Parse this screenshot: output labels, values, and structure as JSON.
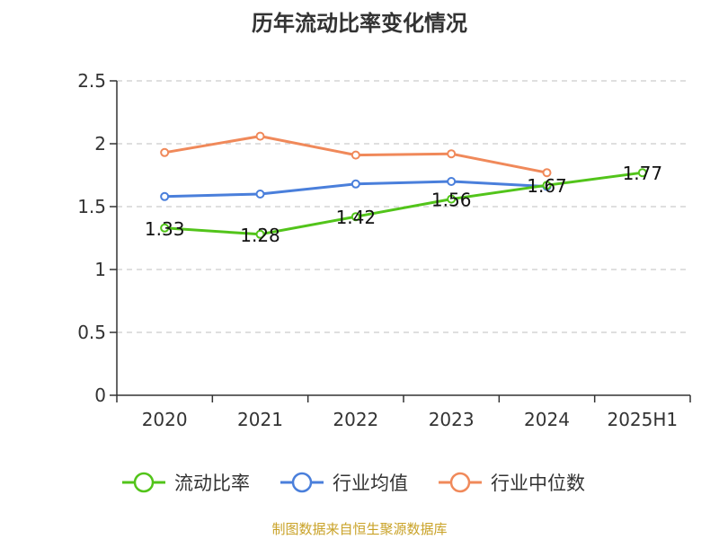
{
  "chart_data": {
    "type": "line",
    "title": "历年流动比率变化情况",
    "categories": [
      "2020",
      "2021",
      "2022",
      "2023",
      "2024",
      "2025H1"
    ],
    "ylim": [
      0,
      2.5
    ],
    "yticks": [
      "0",
      "0.5",
      "1",
      "1.5",
      "2",
      "2.5"
    ],
    "grid": true,
    "legend_position": "bottom",
    "series": [
      {
        "name": "流动比率",
        "color": "#52c41a",
        "values": [
          1.33,
          1.28,
          1.42,
          1.56,
          1.67,
          1.77
        ],
        "labels": [
          "1.33",
          "1.28",
          "1.42",
          "1.56",
          "1.67",
          "1.77"
        ]
      },
      {
        "name": "行业均值",
        "color": "#4a7fdb",
        "values": [
          1.58,
          1.6,
          1.68,
          1.7,
          1.66,
          null
        ]
      },
      {
        "name": "行业中位数",
        "color": "#f0895a",
        "values": [
          1.93,
          2.06,
          1.91,
          1.92,
          1.77,
          null
        ]
      }
    ]
  },
  "source_note": "制图数据来自恒生聚源数据库"
}
